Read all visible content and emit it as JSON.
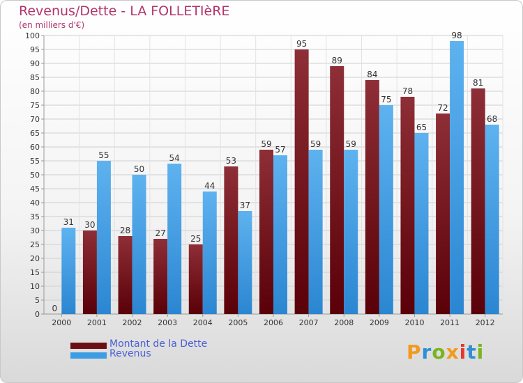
{
  "title": "Revenus/Dette - LA FOLLETIèRE",
  "subtitle": "(en milliers d'€)",
  "colors": {
    "series_dette": "#7b1a22",
    "series_revenus": "#4aa3e6",
    "title": "#b2336b",
    "legend_text": "#4a5fd6"
  },
  "legend": [
    {
      "label": "Montant de la Dette",
      "color": "#6b0f16"
    },
    {
      "label": "Revenus",
      "color": "#3d9de2"
    }
  ],
  "logo": {
    "text": "Proxiti",
    "colors": [
      "#f29a1f",
      "#2e8fd4",
      "#7ab51d",
      "#f29a1f",
      "#e23a2e",
      "#2e8fd4",
      "#7ab51d"
    ]
  },
  "chart_data": {
    "type": "bar",
    "categories": [
      "2000",
      "2001",
      "2002",
      "2003",
      "2004",
      "2005",
      "2006",
      "2007",
      "2008",
      "2009",
      "2010",
      "2011",
      "2012"
    ],
    "series": [
      {
        "name": "Montant de la Dette",
        "values": [
          0,
          30,
          28,
          27,
          25,
          53,
          59,
          95,
          89,
          84,
          78,
          72,
          81
        ]
      },
      {
        "name": "Revenus",
        "values": [
          31,
          55,
          50,
          54,
          44,
          37,
          57,
          59,
          59,
          75,
          65,
          98,
          68
        ]
      }
    ],
    "ylim": [
      0,
      100
    ],
    "yticks": [
      0,
      5,
      10,
      15,
      20,
      25,
      30,
      35,
      40,
      45,
      50,
      55,
      60,
      65,
      70,
      75,
      80,
      85,
      90,
      95,
      100
    ],
    "grid": true,
    "legend_position": "bottom-left",
    "xlabel": "",
    "ylabel": ""
  }
}
